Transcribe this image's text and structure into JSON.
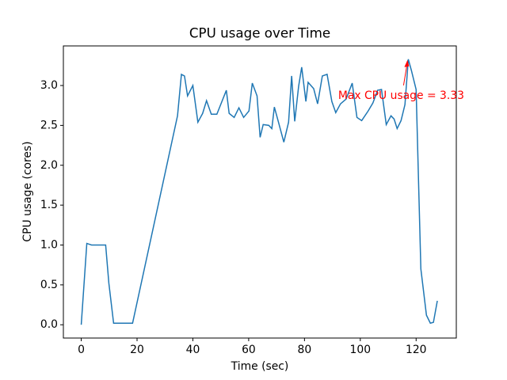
{
  "chart_data": {
    "type": "line",
    "title": "CPU usage over Time",
    "x_label": "Time (sec)",
    "y_label": "CPU usage (cores)",
    "annotation": "Max CPU usage = 3.33",
    "annotation_color": "#ff0000",
    "x": [
      0,
      2,
      3.7,
      8.75,
      9.9,
      11.6,
      18.4,
      34.5,
      35.9,
      37,
      38.1,
      40,
      41.8,
      43.5,
      44.9,
      46.6,
      48.6,
      52,
      53,
      54.8,
      56.5,
      58.2,
      60.1,
      61.3,
      63,
      64.1,
      65.2,
      67.2,
      68.3,
      69.2,
      70.6,
      72.6,
      74.3,
      75.4,
      76.5,
      77.9,
      79,
      80.5,
      81.3,
      83.3,
      84.7,
      86.4,
      88.1,
      89.8,
      91.2,
      92.9,
      94.9,
      97.1,
      98.8,
      100.5,
      102.8,
      104.5,
      106.2,
      107.6,
      109.3,
      111,
      112.1,
      113.2,
      114.6,
      116,
      117.2,
      118.3,
      120,
      121.7,
      123.7,
      125.1,
      126.2,
      127.6
    ],
    "series": [
      {
        "name": "CPU usage",
        "color": "#1f77b4",
        "values": [
          0,
          1.02,
          1.0,
          1.0,
          0.52,
          0.02,
          0.02,
          2.62,
          3.14,
          3.12,
          2.87,
          3.0,
          2.54,
          2.65,
          2.81,
          2.64,
          2.64,
          2.94,
          2.65,
          2.6,
          2.72,
          2.6,
          2.68,
          3.03,
          2.87,
          2.35,
          2.51,
          2.5,
          2.46,
          2.73,
          2.55,
          2.29,
          2.54,
          3.12,
          2.55,
          2.99,
          3.23,
          2.8,
          3.04,
          2.96,
          2.77,
          3.12,
          3.14,
          2.8,
          2.66,
          2.77,
          2.83,
          3.03,
          2.6,
          2.56,
          2.68,
          2.78,
          2.94,
          2.95,
          2.51,
          2.62,
          2.58,
          2.46,
          2.56,
          2.76,
          3.33,
          3.19,
          2.95,
          0.7,
          0.12,
          0.02,
          0.03,
          0.3
        ]
      }
    ],
    "xlim": [
      -6.4,
      134.4
    ],
    "xticks": [
      0,
      20,
      40,
      60,
      80,
      100,
      120
    ],
    "ylim": [
      -0.1665,
      3.4965
    ],
    "yticks": [
      {
        "value": 0,
        "label": "0.0"
      },
      {
        "value": 0.5,
        "label": "0.5"
      },
      {
        "value": 1,
        "label": "1.0"
      },
      {
        "value": 1.5,
        "label": "1.5"
      },
      {
        "value": 2,
        "label": "2.0"
      },
      {
        "value": 2.5,
        "label": "2.5"
      },
      {
        "value": 3,
        "label": "3.0"
      }
    ]
  }
}
